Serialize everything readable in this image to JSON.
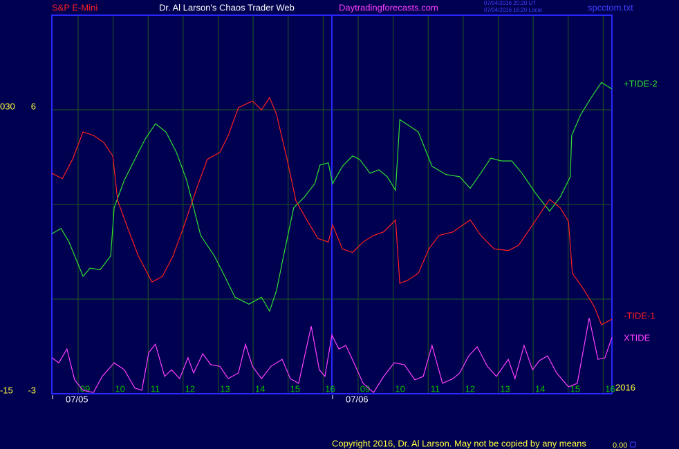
{
  "header": {
    "symbol": "S&P E-Mini",
    "site_title": "Dr. Al Larson's Chaos Trader Web",
    "url": "Daytradingforecasts.com",
    "time_ut": "07/04/2016 20:20 UT",
    "time_local": "07/04/2016 16:20 Local",
    "file": "spcctom.txt"
  },
  "chart_data": {
    "type": "line",
    "xlim": [
      0,
      16
    ],
    "xticks": [
      {
        "value": 0.75,
        "label": "09"
      },
      {
        "value": 1.75,
        "label": "10"
      },
      {
        "value": 2.75,
        "label": "11"
      },
      {
        "value": 3.75,
        "label": "12"
      },
      {
        "value": 4.75,
        "label": "13"
      },
      {
        "value": 5.75,
        "label": "14"
      },
      {
        "value": 6.75,
        "label": "15"
      },
      {
        "value": 7.75,
        "label": "16"
      },
      {
        "value": 8.75,
        "label": "09"
      },
      {
        "value": 9.75,
        "label": "10"
      },
      {
        "value": 10.75,
        "label": "11"
      },
      {
        "value": 11.75,
        "label": "12"
      },
      {
        "value": 12.75,
        "label": "13"
      },
      {
        "value": 13.75,
        "label": "14"
      },
      {
        "value": 14.75,
        "label": "15"
      },
      {
        "value": 15.75,
        "label": "16"
      }
    ],
    "date_ticks": [
      {
        "value": 0,
        "label": "07/05"
      },
      {
        "value": 8,
        "label": "07/06"
      }
    ],
    "year_label": "2016",
    "ylim": [
      -3,
      9
    ],
    "yticks": [
      -3,
      6
    ],
    "ygrid": [
      0,
      3,
      6
    ],
    "y2lim": [
      -15,
      45
    ],
    "y2ticks": [
      -15,
      {
        "value": 30,
        "label": "030"
      }
    ],
    "grid": true,
    "series": [
      {
        "name": "+TIDE-2",
        "color": "#30e030",
        "x": [
          0,
          0.26,
          0.49,
          0.89,
          1.09,
          1.38,
          1.68,
          1.78,
          2.07,
          2.37,
          2.67,
          2.96,
          3.26,
          3.56,
          3.85,
          4.25,
          4.64,
          4.94,
          5.23,
          5.63,
          5.99,
          6.22,
          6.42,
          6.62,
          6.91,
          7.21,
          7.51,
          7.66,
          7.9,
          8.02,
          8.3,
          8.59,
          8.79,
          9.09,
          9.34,
          9.58,
          9.82,
          9.94,
          10.17,
          10.47,
          10.86,
          11.26,
          11.65,
          11.95,
          12.25,
          12.54,
          12.84,
          13.14,
          13.43,
          13.83,
          14.22,
          14.52,
          14.81,
          14.85,
          15.11,
          15.41,
          15.7,
          16
        ],
        "values": [
          2.07,
          2.24,
          1.81,
          0.72,
          0.98,
          0.93,
          1.37,
          2.9,
          3.77,
          4.43,
          5.08,
          5.56,
          5.3,
          4.65,
          3.77,
          2.02,
          1.37,
          0.72,
          0.06,
          -0.16,
          0.06,
          -0.38,
          0.28,
          1.37,
          2.9,
          3.23,
          3.66,
          4.25,
          4.32,
          3.66,
          4.21,
          4.54,
          4.43,
          3.99,
          4.1,
          3.88,
          3.45,
          5.69,
          5.52,
          5.3,
          4.21,
          3.95,
          3.88,
          3.51,
          3.99,
          4.47,
          4.38,
          4.38,
          3.99,
          3.34,
          2.79,
          3.23,
          3.88,
          5.19,
          5.85,
          6.39,
          6.87,
          6.66
        ]
      },
      {
        "name": "-TIDE-1",
        "color": "#ff2020",
        "x": [
          0,
          0.3,
          0.59,
          0.89,
          1.19,
          1.48,
          1.74,
          1.88,
          2.17,
          2.47,
          2.86,
          3.16,
          3.46,
          3.75,
          4.15,
          4.44,
          4.8,
          5.04,
          5.33,
          5.73,
          5.99,
          6.22,
          6.42,
          6.72,
          6.97,
          7.31,
          7.6,
          7.9,
          8.02,
          8.3,
          8.59,
          8.89,
          9.19,
          9.48,
          9.68,
          9.82,
          9.94,
          10.17,
          10.47,
          10.77,
          11.06,
          11.46,
          11.95,
          12.25,
          12.64,
          13.04,
          13.33,
          13.73,
          14.22,
          14.52,
          14.76,
          14.87,
          15.21,
          15.51,
          15.7,
          16
        ],
        "values": [
          3.99,
          3.82,
          4.43,
          5.3,
          5.19,
          4.97,
          4.54,
          3.12,
          2.24,
          1.37,
          0.54,
          0.72,
          1.37,
          2.24,
          3.55,
          4.43,
          4.65,
          5.19,
          6.07,
          6.28,
          6,
          6.39,
          5.85,
          4.43,
          3.12,
          2.46,
          1.92,
          1.81,
          2.35,
          1.59,
          1.48,
          1.81,
          2.02,
          2.13,
          2.35,
          2.51,
          0.5,
          0.6,
          0.82,
          1.59,
          2.02,
          2.13,
          2.51,
          2.02,
          1.59,
          1.54,
          1.7,
          2.35,
          3.16,
          2.9,
          2.46,
          0.82,
          0.28,
          -0.27,
          -0.81,
          -0.64
        ]
      },
      {
        "name": "XTIDE",
        "color": "#ff40ff",
        "x": [
          0,
          0.2,
          0.43,
          0.65,
          0.89,
          1.19,
          1.44,
          1.78,
          2.07,
          2.37,
          2.57,
          2.77,
          2.96,
          3.22,
          3.42,
          3.65,
          3.89,
          4.05,
          4.31,
          4.54,
          4.8,
          5.04,
          5.33,
          5.53,
          5.73,
          5.99,
          6.26,
          6.58,
          6.81,
          7.05,
          7.41,
          7.64,
          7.8,
          8,
          8.2,
          8.4,
          8.63,
          8.89,
          9.19,
          9.48,
          9.78,
          10.07,
          10.37,
          10.61,
          10.86,
          11.16,
          11.46,
          11.65,
          11.91,
          12.15,
          12.44,
          12.7,
          13.04,
          13.23,
          13.49,
          13.73,
          13.93,
          14.16,
          14.42,
          14.76,
          15.01,
          15.35,
          15.6,
          15.8,
          16
        ],
        "values": [
          -1.86,
          -2.02,
          -1.58,
          -2.56,
          -2.89,
          -2.96,
          -2.45,
          -2.02,
          -2.24,
          -2.82,
          -2.89,
          -1.69,
          -1.43,
          -2.45,
          -2.24,
          -2.52,
          -1.86,
          -2.34,
          -1.73,
          -2.08,
          -2.13,
          -2.52,
          -2.34,
          -1.43,
          -2.13,
          -2.52,
          -2.13,
          -1.91,
          -2.52,
          -2.67,
          -0.86,
          -2.24,
          -2.45,
          -1.14,
          -1.58,
          -1.47,
          -2.02,
          -2.67,
          -2.96,
          -2.45,
          -2.02,
          -2.08,
          -2.56,
          -2.45,
          -1.47,
          -2.67,
          -2.52,
          -2.34,
          -1.8,
          -1.51,
          -2.13,
          -2.45,
          -1.91,
          -2.52,
          -1.47,
          -2.24,
          -1.95,
          -1.8,
          -2.34,
          -2.78,
          -2.67,
          -0.6,
          -1.91,
          -1.86,
          -1.21
        ]
      }
    ]
  },
  "footer": {
    "copyright": "Copyright 2016, Dr. Al Larson. May not be copied by any means",
    "value": "0.00"
  }
}
